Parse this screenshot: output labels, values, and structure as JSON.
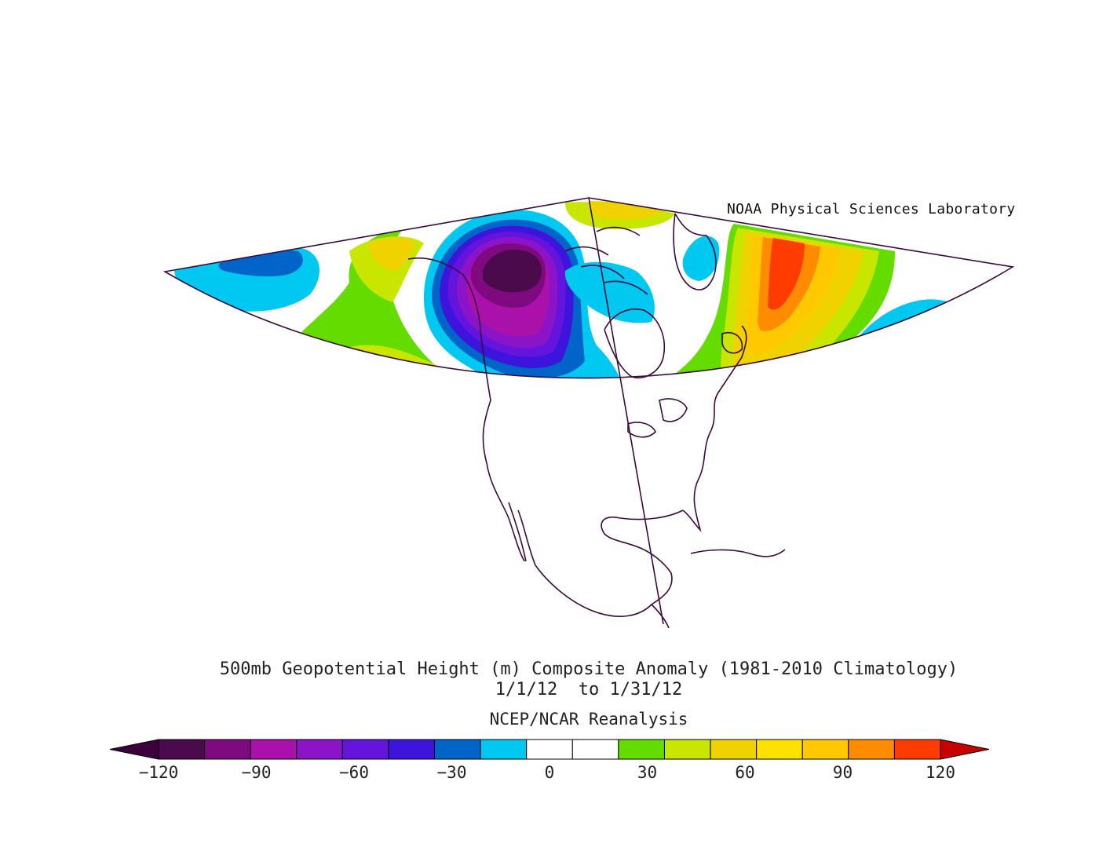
{
  "credit": "NOAA Physical Sciences Laboratory",
  "title": "500mb Geopotential Height (m) Composite Anomaly (1981-2010 Climatology)",
  "date_range": "1/1/12  to 1/31/12",
  "dataset": "NCEP/NCAR Reanalysis",
  "colorbar": {
    "tick_labels": [
      "-120",
      "-90",
      "-60",
      "-30",
      "0",
      "30",
      "60",
      "90",
      "120"
    ],
    "tick_values": [
      -120,
      -90,
      -60,
      -30,
      0,
      30,
      60,
      90,
      120
    ],
    "interval": 15,
    "colors": [
      "#4b0a4b",
      "#7f0a7f",
      "#aa10aa",
      "#8c14c8",
      "#6414dc",
      "#3c14dc",
      "#0064c8",
      "#00c8f0",
      "#ffffff",
      "#ffffff",
      "#64dc00",
      "#c8e600",
      "#f0d200",
      "#ffe100",
      "#ffc800",
      "#ff8c00",
      "#ff3c00"
    ],
    "under_color": "#3c003c",
    "over_color": "#c80000"
  },
  "map": {
    "projection": "conic",
    "region": "North America / North Atlantic / North Pacific",
    "coastline_color": "#3c0a3c"
  }
}
